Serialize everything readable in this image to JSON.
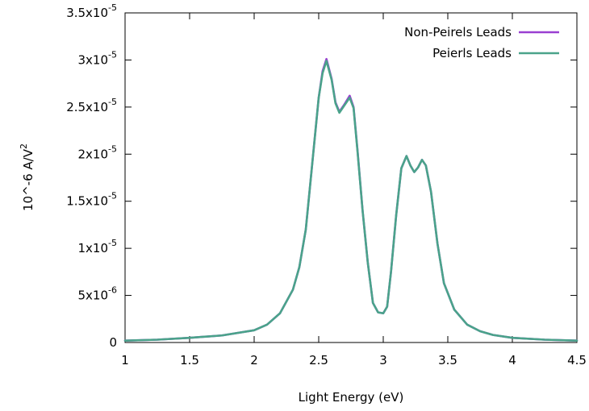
{
  "chart_data": {
    "type": "line",
    "title": "",
    "xlabel": "Light Energy (eV)",
    "ylabel": "10^-6 A/V^2",
    "xlim": [
      1,
      4.5
    ],
    "ylim": [
      0,
      3.5e-05
    ],
    "x_ticks": [
      1,
      1.5,
      2,
      2.5,
      3,
      3.5,
      4,
      4.5
    ],
    "x_tick_labels": [
      "1",
      "1.5",
      "2",
      "2.5",
      "3",
      "3.5",
      "4",
      "4.5"
    ],
    "y_ticks": [
      0,
      5e-06,
      1e-05,
      1.5e-05,
      2e-05,
      2.5e-05,
      3e-05,
      3.5e-05
    ],
    "y_tick_labels": [
      {
        "mantissa": "0",
        "exponent": ""
      },
      {
        "mantissa": "5x10",
        "exponent": "-6"
      },
      {
        "mantissa": "1x10",
        "exponent": "-5"
      },
      {
        "mantissa": "1.5x10",
        "exponent": "-5"
      },
      {
        "mantissa": "2x10",
        "exponent": "-5"
      },
      {
        "mantissa": "2.5x10",
        "exponent": "-5"
      },
      {
        "mantissa": "3x10",
        "exponent": "-5"
      },
      {
        "mantissa": "3.5x10",
        "exponent": "-5"
      }
    ],
    "grid": false,
    "legend_position": "top-right",
    "x": [
      1.0,
      1.25,
      1.5,
      1.75,
      2.0,
      2.1,
      2.2,
      2.3,
      2.35,
      2.4,
      2.45,
      2.5,
      2.53,
      2.56,
      2.6,
      2.63,
      2.66,
      2.7,
      2.74,
      2.77,
      2.8,
      2.84,
      2.88,
      2.92,
      2.96,
      3.0,
      3.03,
      3.06,
      3.1,
      3.14,
      3.18,
      3.21,
      3.24,
      3.27,
      3.3,
      3.33,
      3.37,
      3.42,
      3.47,
      3.55,
      3.65,
      3.75,
      3.85,
      4.0,
      4.25,
      4.5
    ],
    "series": [
      {
        "name": "Non-Peirels Leads",
        "color": "#9a3fd1",
        "values": [
          2e-07,
          3e-07,
          5e-07,
          7.5e-07,
          1.3e-06,
          1.9e-06,
          3.1e-06,
          5.6e-06,
          8e-06,
          1.2e-05,
          1.9e-05,
          2.6e-05,
          2.88e-05,
          3.01e-05,
          2.8e-05,
          2.55e-05,
          2.45e-05,
          2.53e-05,
          2.62e-05,
          2.5e-05,
          2.05e-05,
          1.4e-05,
          8.5e-06,
          4.2e-06,
          3.2e-06,
          3.1e-06,
          3.8e-06,
          7.5e-06,
          1.35e-05,
          1.85e-05,
          1.98e-05,
          1.88e-05,
          1.81e-05,
          1.86e-05,
          1.94e-05,
          1.88e-05,
          1.6e-05,
          1.05e-05,
          6.3e-06,
          3.5e-06,
          1.9e-06,
          1.2e-06,
          8e-07,
          5e-07,
          3e-07,
          2e-07
        ]
      },
      {
        "name": "Peierls Leads",
        "color": "#4aa38a",
        "values": [
          2e-07,
          3e-07,
          5e-07,
          7.5e-07,
          1.3e-06,
          1.9e-06,
          3.1e-06,
          5.6e-06,
          8e-06,
          1.2e-05,
          1.9e-05,
          2.6e-05,
          2.86e-05,
          2.99e-05,
          2.79e-05,
          2.54e-05,
          2.44e-05,
          2.52e-05,
          2.6e-05,
          2.49e-05,
          2.04e-05,
          1.4e-05,
          8.5e-06,
          4.2e-06,
          3.2e-06,
          3.1e-06,
          3.8e-06,
          7.5e-06,
          1.35e-05,
          1.85e-05,
          1.98e-05,
          1.88e-05,
          1.81e-05,
          1.86e-05,
          1.94e-05,
          1.88e-05,
          1.6e-05,
          1.05e-05,
          6.3e-06,
          3.5e-06,
          1.9e-06,
          1.2e-06,
          8e-07,
          5e-07,
          3e-07,
          2e-07
        ]
      }
    ]
  }
}
